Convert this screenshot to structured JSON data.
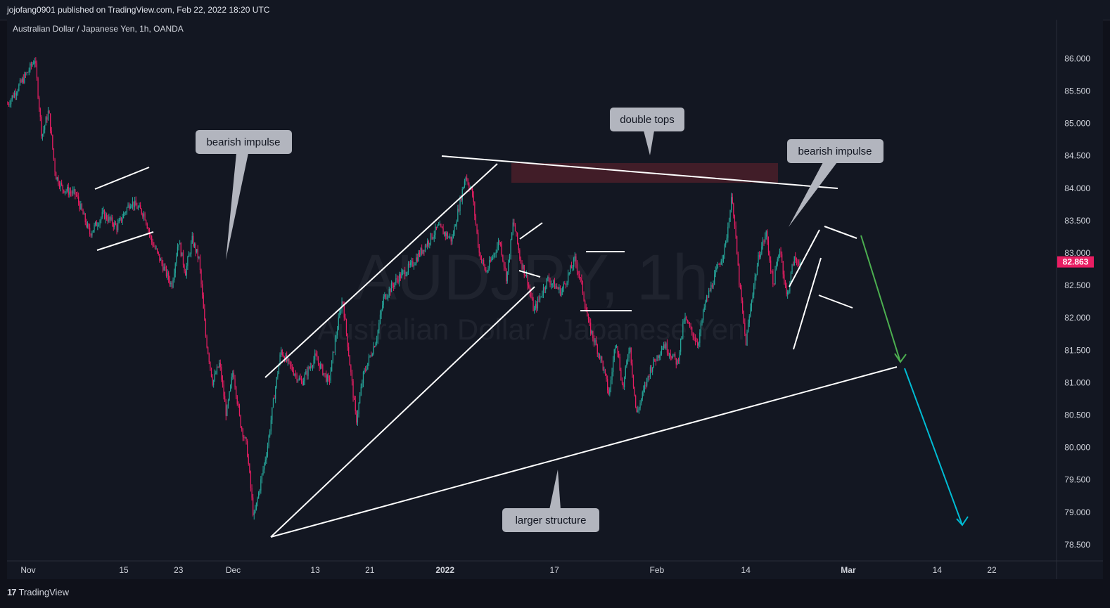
{
  "header": {
    "publisher_line": "jojofang0901 published on TradingView.com, Feb 22, 2022 18:20 UTC"
  },
  "footer": {
    "brand": "TradingView"
  },
  "chart_data": {
    "type": "candlestick",
    "symbol_line": "Australian Dollar / Japanese Yen, 1h, OANDA",
    "watermark_symbol": "AUDJPY, 1h",
    "watermark_name": "Australian Dollar / Japanese Yen",
    "ylim": [
      78.25,
      86.6
    ],
    "y_ticks": [
      "86.000",
      "85.500",
      "85.000",
      "84.500",
      "84.000",
      "83.500",
      "83.000",
      "82.500",
      "82.000",
      "81.500",
      "81.000",
      "80.500",
      "80.000",
      "79.500",
      "79.000",
      "78.500"
    ],
    "y_tick_values": [
      86.0,
      85.5,
      85.0,
      84.5,
      84.0,
      83.5,
      83.0,
      82.5,
      82.0,
      81.5,
      81.0,
      80.5,
      80.0,
      79.5,
      79.0,
      78.5
    ],
    "x_ticks": [
      {
        "label": "Nov",
        "date": "2021-11-01"
      },
      {
        "label": "15",
        "date": "2021-11-15"
      },
      {
        "label": "23",
        "date": "2021-11-23"
      },
      {
        "label": "Dec",
        "date": "2021-12-01"
      },
      {
        "label": "13",
        "date": "2021-12-13"
      },
      {
        "label": "21",
        "date": "2021-12-21"
      },
      {
        "label": "2022",
        "date": "2022-01-01"
      },
      {
        "label": "17",
        "date": "2022-01-17"
      },
      {
        "label": "Feb",
        "date": "2022-02-01"
      },
      {
        "label": "14",
        "date": "2022-02-14"
      },
      {
        "label": "Mar",
        "date": "2022-03-01"
      },
      {
        "label": "14",
        "date": "2022-03-14"
      },
      {
        "label": "22",
        "date": "2022-03-22"
      }
    ],
    "last_price": "82.863",
    "up_color": "#26a69a",
    "down_color": "#e91e63",
    "price_path": [
      [
        "2021-10-29",
        85.3
      ],
      [
        "2021-11-01",
        85.8
      ],
      [
        "2021-11-02",
        86.0
      ],
      [
        "2021-11-03",
        84.8
      ],
      [
        "2021-11-04",
        85.2
      ],
      [
        "2021-11-05",
        84.2
      ],
      [
        "2021-11-06",
        84.0
      ],
      [
        "2021-11-08",
        83.9
      ],
      [
        "2021-11-10",
        83.3
      ],
      [
        "2021-11-12",
        83.6
      ],
      [
        "2021-11-14",
        83.4
      ],
      [
        "2021-11-16",
        83.8
      ],
      [
        "2021-11-18",
        83.6
      ],
      [
        "2021-11-19",
        83.2
      ],
      [
        "2021-11-22",
        82.5
      ],
      [
        "2021-11-23",
        83.2
      ],
      [
        "2021-11-24",
        82.7
      ],
      [
        "2021-11-25",
        83.2
      ],
      [
        "2021-11-26",
        82.9
      ],
      [
        "2021-11-27",
        81.7
      ],
      [
        "2021-11-28",
        81.0
      ],
      [
        "2021-11-29",
        81.3
      ],
      [
        "2021-11-30",
        80.5
      ],
      [
        "2021-12-01",
        81.2
      ],
      [
        "2021-12-02",
        80.4
      ],
      [
        "2021-12-03",
        80.0
      ],
      [
        "2021-12-04",
        78.9
      ],
      [
        "2021-12-06",
        80.0
      ],
      [
        "2021-12-07",
        80.8
      ],
      [
        "2021-12-08",
        81.5
      ],
      [
        "2021-12-09",
        81.3
      ],
      [
        "2021-12-11",
        81.0
      ],
      [
        "2021-12-13",
        81.4
      ],
      [
        "2021-12-15",
        81.0
      ],
      [
        "2021-12-16",
        81.7
      ],
      [
        "2021-12-17",
        82.3
      ],
      [
        "2021-12-19",
        80.4
      ],
      [
        "2021-12-20",
        81.1
      ],
      [
        "2021-12-22",
        81.7
      ],
      [
        "2021-12-23",
        82.3
      ],
      [
        "2021-12-25",
        82.6
      ],
      [
        "2021-12-27",
        82.8
      ],
      [
        "2021-12-29",
        83.1
      ],
      [
        "2021-12-31",
        83.4
      ],
      [
        "2022-01-02",
        83.2
      ],
      [
        "2022-01-03",
        83.7
      ],
      [
        "2022-01-04",
        84.2
      ],
      [
        "2022-01-05",
        83.9
      ],
      [
        "2022-01-06",
        83.0
      ],
      [
        "2022-01-07",
        82.7
      ],
      [
        "2022-01-09",
        83.2
      ],
      [
        "2022-01-10",
        82.6
      ],
      [
        "2022-01-11",
        83.5
      ],
      [
        "2022-01-12",
        82.9
      ],
      [
        "2022-01-13",
        82.6
      ],
      [
        "2022-01-14",
        82.1
      ],
      [
        "2022-01-16",
        82.6
      ],
      [
        "2022-01-18",
        82.4
      ],
      [
        "2022-01-20",
        82.9
      ],
      [
        "2022-01-21",
        82.5
      ],
      [
        "2022-01-22",
        81.9
      ],
      [
        "2022-01-24",
        81.3
      ],
      [
        "2022-01-25",
        80.8
      ],
      [
        "2022-01-26",
        81.7
      ],
      [
        "2022-01-27",
        80.9
      ],
      [
        "2022-01-28",
        81.6
      ],
      [
        "2022-01-29",
        80.5
      ],
      [
        "2022-01-31",
        81.2
      ],
      [
        "2022-02-02",
        81.6
      ],
      [
        "2022-02-04",
        81.3
      ],
      [
        "2022-02-05",
        82.0
      ],
      [
        "2022-02-07",
        81.6
      ],
      [
        "2022-02-08",
        82.2
      ],
      [
        "2022-02-10",
        82.8
      ],
      [
        "2022-02-11",
        83.1
      ],
      [
        "2022-02-12",
        83.9
      ],
      [
        "2022-02-13",
        82.6
      ],
      [
        "2022-02-14",
        81.6
      ],
      [
        "2022-02-15",
        82.4
      ],
      [
        "2022-02-16",
        83.0
      ],
      [
        "2022-02-17",
        83.3
      ],
      [
        "2022-02-18",
        82.5
      ],
      [
        "2022-02-19",
        83.1
      ],
      [
        "2022-02-20",
        82.3
      ],
      [
        "2022-02-21",
        82.9
      ],
      [
        "2022-02-22",
        82.863
      ]
    ],
    "annotations": [
      {
        "text": "bearish impulse"
      },
      {
        "text": "double tops"
      },
      {
        "text": "bearish impulse"
      },
      {
        "text": "larger structure"
      }
    ]
  }
}
